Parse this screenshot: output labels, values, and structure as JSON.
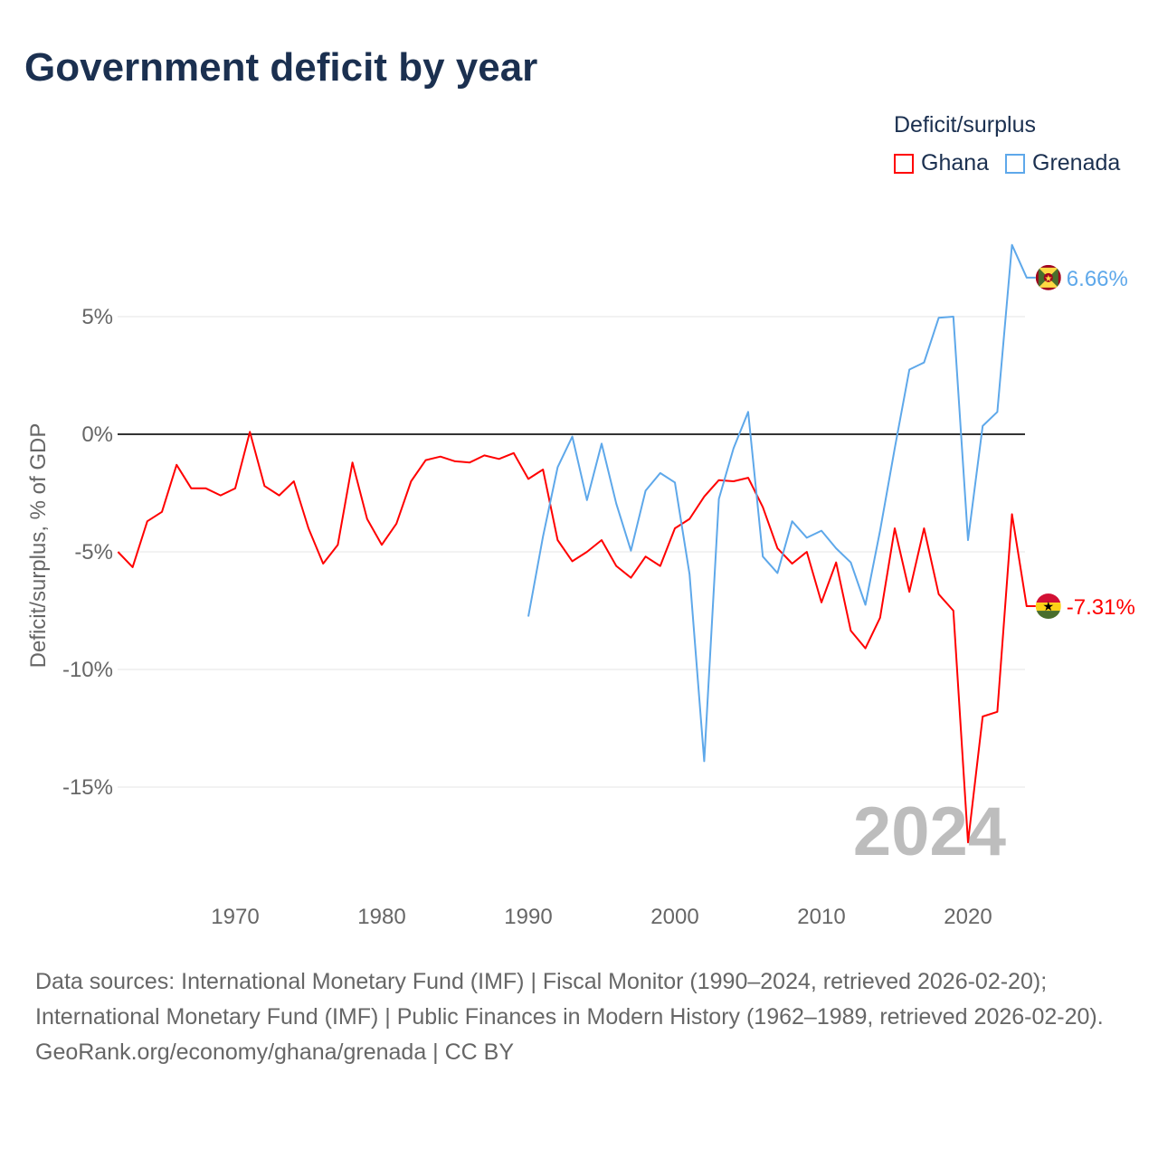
{
  "title": "Government deficit by year",
  "legend": {
    "title": "Deficit/surplus",
    "items": [
      {
        "name": "Ghana",
        "color": "#ff0000"
      },
      {
        "name": "Grenada",
        "color": "#5ea8ea"
      }
    ]
  },
  "footer": {
    "sources": "Data sources: International Monetary Fund (IMF) | Fiscal Monitor (1990–2024, retrieved 2026-02-20); International Monetary Fund (IMF) | Public Finances in Modern History (1962–1989, retrieved 2026-02-20).",
    "credit": "GeoRank.org/economy/ghana/grenada | CC BY"
  },
  "chart_data": {
    "type": "line",
    "title": "Government deficit by year",
    "xlabel": "",
    "ylabel": "Deficit/surplus, % of GDP",
    "xlim": [
      1962,
      2024
    ],
    "ylim": [
      -18,
      9
    ],
    "xticks": [
      1970,
      1980,
      1990,
      2000,
      2010,
      2020
    ],
    "yticks": [
      {
        "v": 5,
        "label": "5%"
      },
      {
        "v": 0,
        "label": "0%"
      },
      {
        "v": -5,
        "label": "-5%"
      },
      {
        "v": -10,
        "label": "-10%"
      },
      {
        "v": -15,
        "label": "-15%"
      }
    ],
    "year_label": "2024",
    "series": [
      {
        "name": "Ghana",
        "color": "#ff0000",
        "end_label": "-7.31%",
        "start": 1962,
        "values": [
          -5.0,
          -5.65,
          -3.7,
          -3.3,
          -1.3,
          -2.3,
          -2.3,
          -2.6,
          -2.3,
          0.1,
          -2.2,
          -2.6,
          -2.0,
          -4.0,
          -5.5,
          -4.7,
          -1.2,
          -3.6,
          -4.7,
          -3.8,
          -2.0,
          -1.1,
          -0.95,
          -1.15,
          -1.2,
          -0.9,
          -1.05,
          -0.8,
          -1.9,
          -1.5,
          -4.5,
          -5.4,
          -5.0,
          -4.5,
          -5.6,
          -6.1,
          -5.2,
          -5.6,
          -4.0,
          -3.6,
          -2.65,
          -1.95,
          -2.0,
          -1.85,
          -3.1,
          -4.85,
          -5.5,
          -5.0,
          -7.15,
          -5.45,
          -8.35,
          -9.1,
          -7.8,
          -4.0,
          -6.7,
          -4.0,
          -6.8,
          -7.5,
          -17.35,
          -12.0,
          -11.8,
          -3.4,
          -7.31
        ]
      },
      {
        "name": "Grenada",
        "color": "#5ea8ea",
        "end_label": "6.66%",
        "start": 1990,
        "values": [
          -7.75,
          -4.35,
          -1.4,
          -0.1,
          -2.8,
          -0.4,
          -2.95,
          -4.95,
          -2.4,
          -1.65,
          -2.05,
          -5.95,
          -13.9,
          -2.75,
          -0.6,
          0.95,
          -5.2,
          -5.9,
          -3.7,
          -4.4,
          -4.1,
          -4.85,
          -5.45,
          -7.25,
          -4.1,
          -0.6,
          2.75,
          3.05,
          4.95,
          5.0,
          -4.5,
          0.35,
          0.95,
          8.05,
          6.66
        ]
      }
    ]
  }
}
